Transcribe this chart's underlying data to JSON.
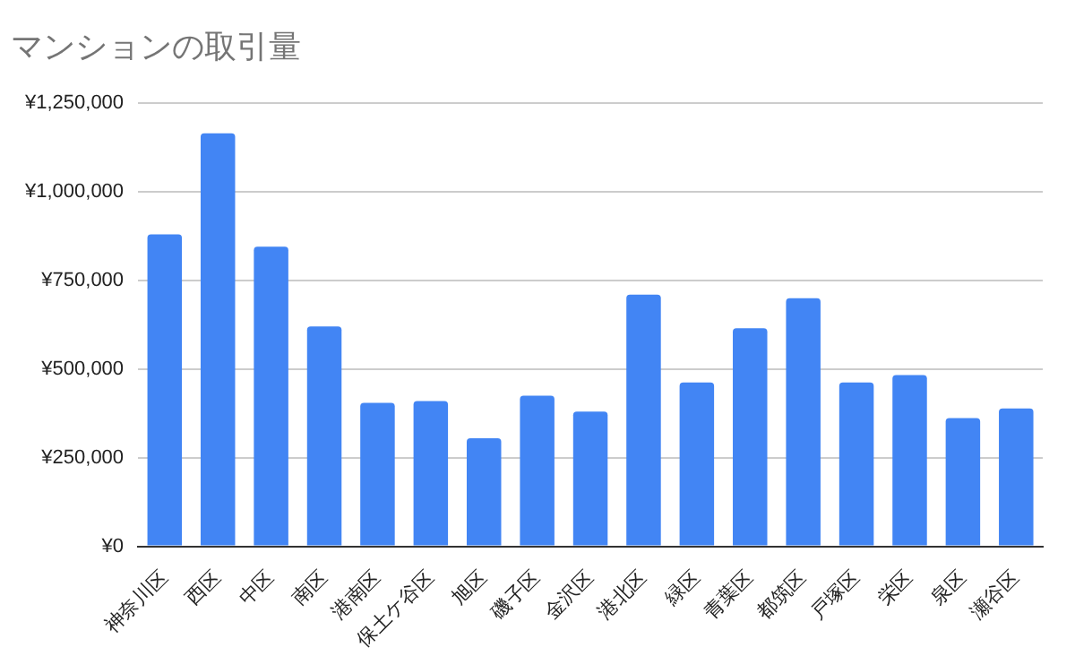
{
  "chart_data": {
    "type": "bar",
    "title": "マンションの取引量",
    "categories": [
      "神奈川区",
      "西区",
      "中区",
      "南区",
      "港南区",
      "保土ケ谷区",
      "旭区",
      "磯子区",
      "金沢区",
      "港北区",
      "緑区",
      "青葉区",
      "都筑区",
      "戸塚区",
      "栄区",
      "泉区",
      "瀬谷区"
    ],
    "values": [
      880000,
      1165000,
      845000,
      620000,
      405000,
      410000,
      305000,
      425000,
      380000,
      710000,
      462000,
      615000,
      700000,
      462000,
      483000,
      362000,
      389000
    ],
    "color": "#4285f4",
    "ylim": [
      0,
      1250000
    ],
    "yticks": [
      {
        "value": 0,
        "label": "¥0"
      },
      {
        "value": 250000,
        "label": "¥250,000"
      },
      {
        "value": 500000,
        "label": "¥500,000"
      },
      {
        "value": 750000,
        "label": "¥750,000"
      },
      {
        "value": 1000000,
        "label": "¥1,000,000"
      },
      {
        "value": 1250000,
        "label": "¥1,250,000"
      }
    ],
    "grid": "y",
    "legend": false
  }
}
